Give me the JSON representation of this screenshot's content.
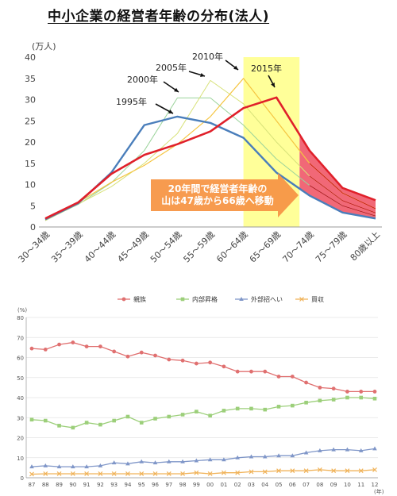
{
  "title": "中小企業の経営者年齢の分布(法人)",
  "chart_data": [
    {
      "type": "line",
      "ylabel": "(万人)",
      "ylim": [
        0,
        40
      ],
      "yticks": [
        0,
        5,
        10,
        15,
        20,
        25,
        30,
        35,
        40
      ],
      "categories": [
        "30～34歳",
        "35～39歳",
        "40～44歳",
        "45～49歳",
        "50～54歳",
        "55～59歳",
        "60～64歳",
        "65～69歳",
        "70～74歳",
        "75～79歳",
        "80歳以上"
      ],
      "series": [
        {
          "name": "1995年",
          "color": "#4a7ebb",
          "width": 2.4,
          "values": [
            1.8,
            5.6,
            12.8,
            24.0,
            26.0,
            24.5,
            21.0,
            12.8,
            7.4,
            3.4,
            2.0
          ]
        },
        {
          "name": "2000年",
          "color": "#9bd39b",
          "width": 1,
          "values": [
            1.6,
            5.3,
            10.4,
            18.0,
            30.4,
            30.4,
            24.0,
            16.0,
            9.8,
            5.0,
            2.6
          ]
        },
        {
          "name": "2005年",
          "color": "#d8e27a",
          "width": 1,
          "values": [
            1.5,
            5.4,
            9.5,
            15.0,
            22.0,
            34.5,
            29.0,
            20.0,
            12.0,
            6.2,
            3.3
          ]
        },
        {
          "name": "2010年",
          "color": "#f5c542",
          "width": 1.2,
          "values": [
            1.7,
            5.8,
            10.5,
            14.5,
            19.5,
            26.0,
            35.0,
            25.0,
            15.0,
            8.0,
            4.3
          ]
        },
        {
          "name": "2015年",
          "color": "#e0202a",
          "width": 2.6,
          "values": [
            2.0,
            5.8,
            12.5,
            17.0,
            19.5,
            22.5,
            28.0,
            30.5,
            18.0,
            9.2,
            6.3
          ]
        }
      ],
      "annotation": "20年間で経営者年齢の\n山は47歳から66歳へ移動"
    },
    {
      "type": "line",
      "ylabel": "(%)",
      "ylim": [
        0,
        80
      ],
      "yticks": [
        0,
        10,
        20,
        30,
        40,
        50,
        60,
        70,
        80
      ],
      "xlabel": "(年)",
      "categories": [
        "87",
        "88",
        "89",
        "90",
        "91",
        "92",
        "93",
        "94",
        "95",
        "96",
        "97",
        "98",
        "99",
        "00",
        "01",
        "02",
        "03",
        "04",
        "05",
        "06",
        "07",
        "08",
        "09",
        "10",
        "11",
        "12"
      ],
      "series": [
        {
          "name": "親族",
          "color": "#e07070",
          "marker": "circle",
          "values": [
            64.5,
            64,
            66.5,
            67.5,
            65.5,
            65.5,
            63,
            60.5,
            62.5,
            61,
            59,
            58.5,
            57,
            57.5,
            55.5,
            53,
            53,
            53,
            50.5,
            50.5,
            47.5,
            45,
            44.5,
            43,
            43,
            43
          ]
        },
        {
          "name": "内部昇格",
          "color": "#9ccf7a",
          "marker": "square",
          "values": [
            29,
            28.5,
            26,
            25,
            27.5,
            26.5,
            28.5,
            30.5,
            27.5,
            29.5,
            30.5,
            31.5,
            33,
            31,
            33.5,
            34.5,
            34.5,
            34,
            35.5,
            36,
            37.5,
            38.5,
            39,
            40,
            40,
            39.5
          ]
        },
        {
          "name": "外部招へい",
          "color": "#7f96c8",
          "marker": "triangle",
          "values": [
            5.5,
            6,
            5.5,
            5.5,
            5.5,
            6,
            7.5,
            7,
            8,
            7.5,
            8,
            8,
            8.5,
            9,
            9,
            10,
            10.5,
            10.5,
            11,
            11,
            12.5,
            13.5,
            14,
            14,
            13.5,
            14.5
          ]
        },
        {
          "name": "買収",
          "color": "#f0b35a",
          "marker": "cross",
          "values": [
            1.8,
            2,
            2,
            2,
            2,
            2,
            2,
            2,
            2,
            2,
            2,
            2,
            2.5,
            2,
            2.5,
            2.5,
            3,
            3,
            3.5,
            3.5,
            3.5,
            4,
            3.5,
            3.5,
            3.5,
            4
          ]
        }
      ]
    }
  ]
}
